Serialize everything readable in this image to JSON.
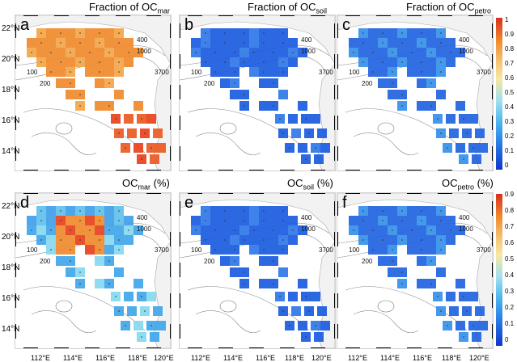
{
  "rows": [
    {
      "panels": [
        {
          "letter": "a",
          "title_main": "Fraction of OC",
          "title_sub": "mar",
          "title_suffix": "",
          "scheme": "high"
        },
        {
          "letter": "b",
          "title_main": "Fraction of OC",
          "title_sub": "soil",
          "title_suffix": "",
          "scheme": "low"
        },
        {
          "letter": "c",
          "title_main": "Fraction of OC",
          "title_sub": "petro",
          "title_suffix": "",
          "scheme": "low2"
        }
      ]
    },
    {
      "panels": [
        {
          "letter": "d",
          "title_main": "OC",
          "title_sub": "mar",
          "title_suffix": " (%)",
          "scheme": "mixed"
        },
        {
          "letter": "e",
          "title_main": "OC",
          "title_sub": "soil",
          "title_suffix": " (%)",
          "scheme": "low"
        },
        {
          "letter": "f",
          "title_main": "OC",
          "title_sub": "petro",
          "title_suffix": " (%)",
          "scheme": "low2"
        }
      ]
    }
  ],
  "contour_labels": [
    "400",
    "1000",
    "3700",
    "100",
    "200"
  ],
  "lat_labels": [
    "22°N",
    "20°N",
    "18°N",
    "16°N",
    "14°N"
  ],
  "lon_labels": [
    "112°E",
    "114°E",
    "116°E",
    "118°E",
    "120°E"
  ],
  "colorbar_ticks": [
    "1",
    "0.9",
    "0.8",
    "0.7",
    "0.6",
    "0.5",
    "0.4",
    "0.3",
    "0.2",
    "0.1",
    "0"
  ],
  "colorbar_ticks_top": [
    "0.9",
    "0.8",
    "0.7",
    "0.6",
    "0.5",
    "0.4",
    "0.3",
    "0.2",
    "0.1",
    "0"
  ],
  "colorbar_ticks_bottom": [
    "0.9",
    "0.8",
    "0.7",
    "0.6",
    "0.5",
    "0.4",
    "0.3",
    "0.2",
    "0.1",
    "0"
  ],
  "colors": {
    "high_low": "#f08a2c",
    "high_high": "#e8401c",
    "low": "#1a5be0",
    "mid": "#3fa6e8",
    "land": "#f2f2f2"
  }
}
